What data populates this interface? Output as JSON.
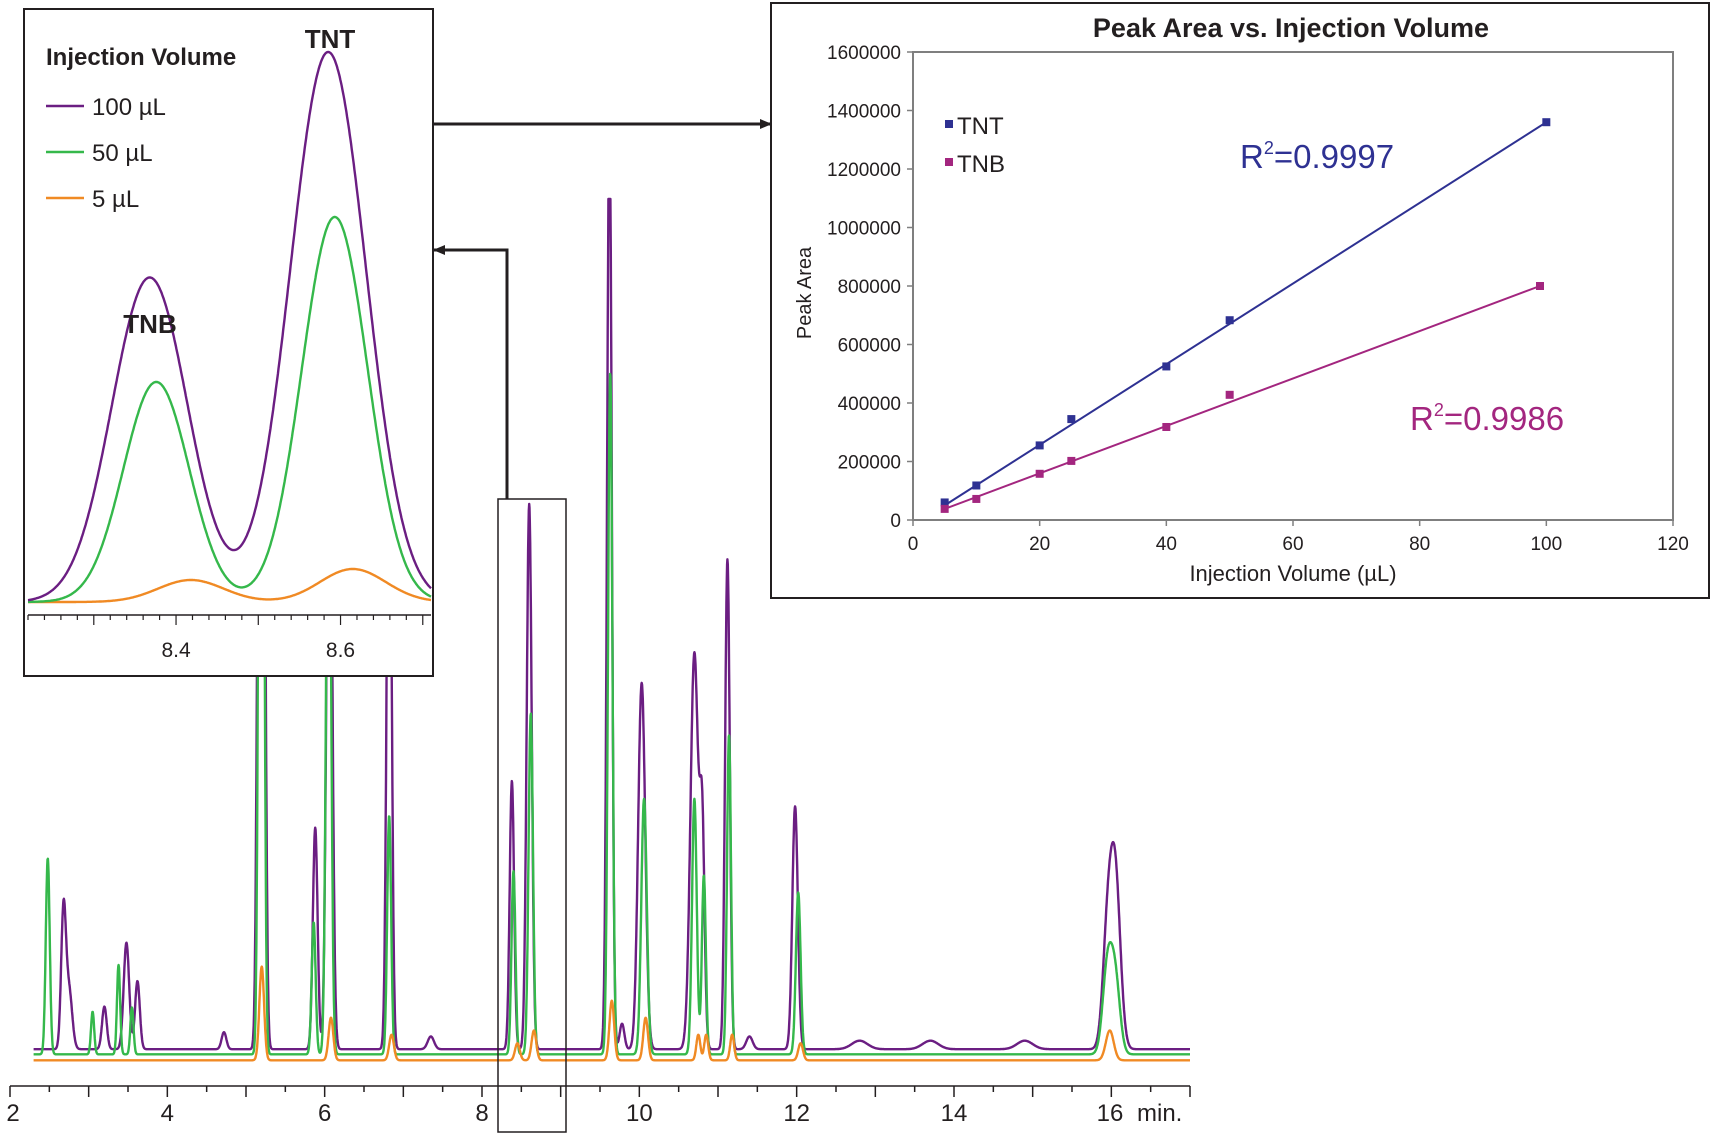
{
  "colors": {
    "purple": "#6B1E82",
    "green": "#35B84B",
    "orange": "#F08A24",
    "tnt_blue": "#2E3192",
    "tnb_magenta": "#A3267F",
    "axis": "#231F20",
    "frame": "#7F7F7F"
  },
  "chart_data": [
    {
      "id": "chromatogram",
      "type": "line",
      "xlim": [
        2,
        17
      ],
      "x_ticks": [
        "2",
        "4",
        "6",
        "8",
        "10",
        "12",
        "14",
        "16"
      ],
      "x_unit": "min.",
      "series": [
        {
          "name": "100 µL",
          "color": "#6B1E82",
          "baseline": 0.03,
          "peaks": [
            [
              2.68,
              0.32,
              0.03
            ],
            [
              2.75,
              0.14,
              0.04
            ],
            [
              3.2,
              0.1,
              0.03
            ],
            [
              3.48,
              0.25,
              0.035
            ],
            [
              3.62,
              0.16,
              0.03
            ],
            [
              4.72,
              0.04,
              0.03
            ],
            [
              5.17,
              1.6,
              0.028
            ],
            [
              5.22,
              1.6,
              0.028
            ],
            [
              5.88,
              0.52,
              0.03
            ],
            [
              6.06,
              1.6,
              0.035
            ],
            [
              6.82,
              1.6,
              0.03
            ],
            [
              7.35,
              0.03,
              0.04
            ],
            [
              8.38,
              0.63,
              0.028
            ],
            [
              8.6,
              1.28,
              0.032
            ],
            [
              9.62,
              2.2,
              0.03
            ],
            [
              9.78,
              0.06,
              0.03
            ],
            [
              10.03,
              0.86,
              0.045
            ],
            [
              10.7,
              0.93,
              0.05
            ],
            [
              10.8,
              0.48,
              0.03
            ],
            [
              11.12,
              1.15,
              0.03
            ],
            [
              11.4,
              0.03,
              0.04
            ],
            [
              11.98,
              0.57,
              0.035
            ],
            [
              12.8,
              0.02,
              0.1
            ],
            [
              13.7,
              0.02,
              0.1
            ],
            [
              14.9,
              0.02,
              0.1
            ],
            [
              15.95,
              0.25,
              0.06
            ],
            [
              16.05,
              0.4,
              0.065
            ]
          ]
        },
        {
          "name": "50 µL",
          "color": "#35B84B",
          "baseline": 0.018,
          "peaks": [
            [
              2.48,
              0.46,
              0.025
            ],
            [
              3.05,
              0.1,
              0.02
            ],
            [
              3.38,
              0.21,
              0.02
            ],
            [
              3.55,
              0.11,
              0.02
            ],
            [
              5.18,
              1.6,
              0.025
            ],
            [
              5.21,
              1.6,
              0.025
            ],
            [
              5.86,
              0.31,
              0.025
            ],
            [
              6.05,
              1.6,
              0.03
            ],
            [
              6.82,
              0.56,
              0.025
            ],
            [
              8.4,
              0.43,
              0.025
            ],
            [
              8.62,
              0.8,
              0.028
            ],
            [
              9.63,
              1.6,
              0.028
            ],
            [
              10.06,
              0.6,
              0.035
            ],
            [
              10.7,
              0.6,
              0.03
            ],
            [
              10.82,
              0.42,
              0.025
            ],
            [
              11.14,
              0.75,
              0.025
            ],
            [
              12.02,
              0.38,
              0.03
            ],
            [
              15.95,
              0.2,
              0.06
            ],
            [
              16.05,
              0.17,
              0.06
            ]
          ]
        },
        {
          "name": "5 µL",
          "color": "#F08A24",
          "baseline": 0.004,
          "peaks": [
            [
              2.15,
              0.02,
              0.02
            ],
            [
              5.2,
              0.22,
              0.03
            ],
            [
              6.08,
              0.1,
              0.03
            ],
            [
              6.85,
              0.06,
              0.03
            ],
            [
              8.45,
              0.04,
              0.03
            ],
            [
              8.66,
              0.07,
              0.03
            ],
            [
              9.65,
              0.14,
              0.03
            ],
            [
              10.08,
              0.1,
              0.03
            ],
            [
              10.75,
              0.06,
              0.025
            ],
            [
              10.85,
              0.06,
              0.025
            ],
            [
              11.18,
              0.06,
              0.025
            ],
            [
              12.05,
              0.04,
              0.03
            ],
            [
              15.98,
              0.07,
              0.05
            ]
          ]
        }
      ]
    },
    {
      "id": "zoom_inset",
      "type": "line",
      "xlim": [
        8.22,
        8.71
      ],
      "x_ticks": [
        "8.4",
        "8.6"
      ],
      "legend_title": "Injection Volume",
      "legend": [
        "100 µL",
        "50 µL",
        "5 µL"
      ],
      "annotations": [
        "TNT",
        "TNB"
      ],
      "series": [
        {
          "name": "100 µL",
          "color": "#6B1E82",
          "peaks": [
            [
              8.368,
              0.59,
              0.046
            ],
            [
              8.585,
              1.0,
              0.046
            ]
          ]
        },
        {
          "name": "50 µL",
          "color": "#35B84B",
          "peaks": [
            [
              8.376,
              0.4,
              0.04
            ],
            [
              8.593,
              0.7,
              0.04
            ]
          ]
        },
        {
          "name": "5 µL",
          "color": "#F08A24",
          "peaks": [
            [
              8.418,
              0.04,
              0.04
            ],
            [
              8.615,
              0.06,
              0.04
            ]
          ]
        }
      ]
    },
    {
      "id": "calibration",
      "type": "scatter",
      "title": "Peak Area vs. Injection Volume",
      "xlabel": "Injection Volume (µL)",
      "ylabel": "Peak Area",
      "xlim": [
        0,
        120
      ],
      "ylim": [
        0,
        1600000
      ],
      "x_ticks": [
        "0",
        "20",
        "40",
        "60",
        "80",
        "100",
        "120"
      ],
      "y_ticks": [
        "0",
        "200000",
        "400000",
        "600000",
        "800000",
        "1000000",
        "1200000",
        "1400000",
        "1600000"
      ],
      "legend_placement": "top-left",
      "series": [
        {
          "name": "TNT",
          "color": "#2E3192",
          "x": [
            5,
            10,
            20,
            25,
            40,
            50,
            100
          ],
          "y": [
            60000,
            118000,
            255000,
            345000,
            525000,
            683000,
            1360000
          ],
          "fit": [
            [
              5,
              50000
            ],
            [
              100,
              1360000
            ]
          ],
          "r2_label": "=0.9997"
        },
        {
          "name": "TNB",
          "color": "#A3267F",
          "x": [
            5,
            10,
            20,
            25,
            40,
            50,
            99
          ],
          "y": [
            38000,
            72000,
            158000,
            202000,
            318000,
            428000,
            800000
          ],
          "fit": [
            [
              5,
              38000
            ],
            [
              99,
              800000
            ]
          ],
          "r2_label": "=0.9986"
        }
      ]
    }
  ]
}
